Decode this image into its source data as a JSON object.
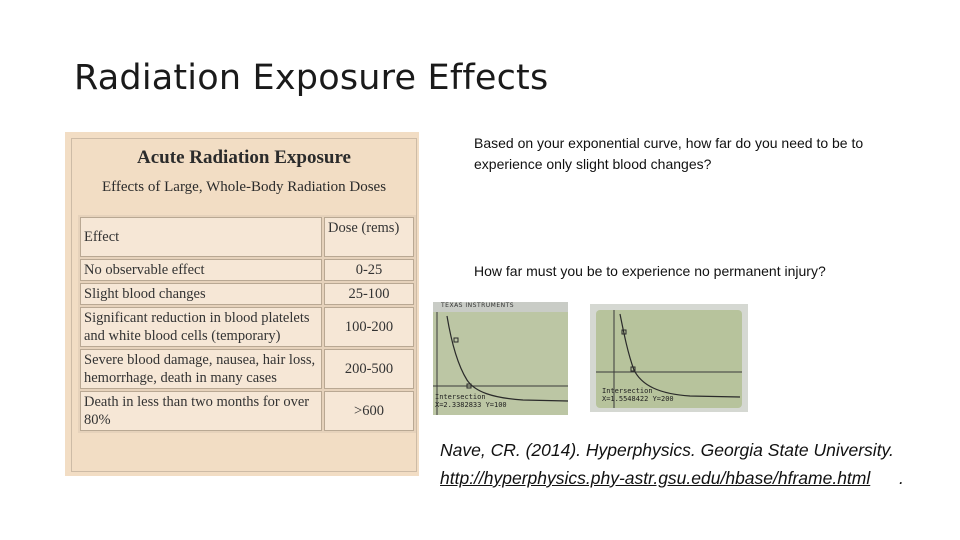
{
  "slide": {
    "title": "Radiation Exposure Effects"
  },
  "table_image": {
    "heading": "Acute Radiation Exposure",
    "subheading": "Effects of Large, Whole-Body Radiation Doses",
    "columns": [
      "Effect",
      "Dose (rems)"
    ],
    "rows": [
      {
        "effect": "No observable effect",
        "dose": "0-25"
      },
      {
        "effect": "Slight blood changes",
        "dose": "25-100"
      },
      {
        "effect": "Significant reduction in blood platelets and white blood cells (temporary)",
        "dose": "100-200"
      },
      {
        "effect": "Severe blood damage, nausea, hair loss, hemorrhage, death in many cases",
        "dose": "200-500"
      },
      {
        "effect": "Death in less than two months for over 80%",
        "dose": ">600"
      }
    ]
  },
  "questions": [
    "Based on your exponential curve, how far do you need to be to experience only slight blood changes?",
    "How far must you be to experience no permanent injury?"
  ],
  "calculator_1": {
    "brand": "TEXAS INSTRUMENTS",
    "label": "Intersection",
    "readout": "X=2.3382833 Y=100"
  },
  "calculator_2": {
    "label": "Intersection",
    "readout": "X=1.5548422 Y=200"
  },
  "citation": {
    "text": "Nave, CR. (2014). Hyperphysics. Georgia State University.",
    "url": "http://hyperphysics.phy-astr.gsu.edu/hbase/hframe.html",
    "trailing": "."
  },
  "colors": {
    "table_background": "#f2ddc4",
    "table_cell": "#f6e7d6",
    "lcd_screen": "#c5cdb0"
  }
}
